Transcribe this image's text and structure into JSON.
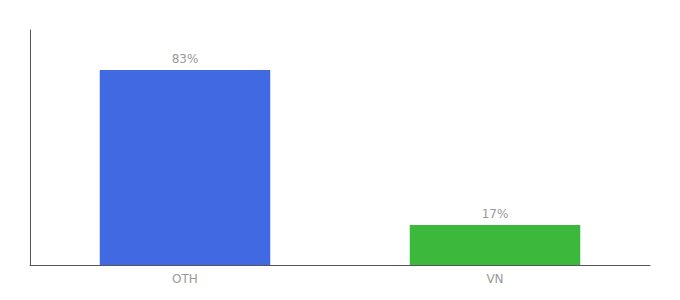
{
  "chart_data": {
    "type": "bar",
    "categories": [
      "OTH",
      "VN"
    ],
    "values": [
      83,
      17
    ],
    "value_labels": [
      "83%",
      "17%"
    ],
    "data_labels": true,
    "colors": [
      "#4169E1",
      "#3CB83C"
    ],
    "ylim": [
      0,
      100
    ],
    "grid": false,
    "tick_labels": "x"
  }
}
